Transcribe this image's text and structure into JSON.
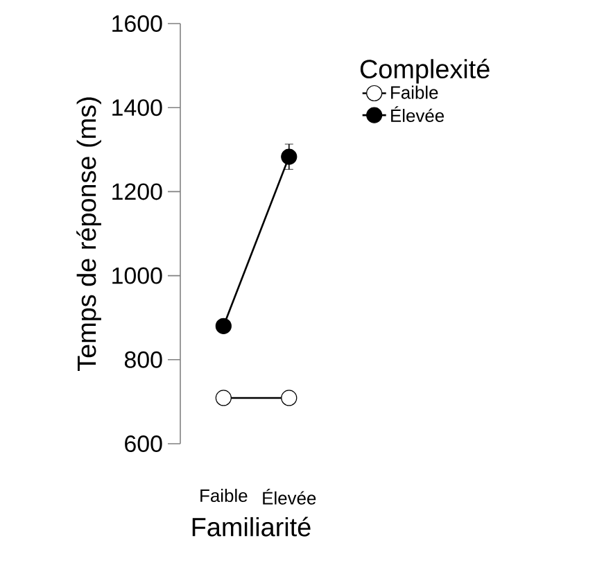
{
  "chart_data": {
    "type": "line",
    "xlabel": "Familiarité",
    "ylabel": "Temps de réponse (ms)",
    "legend_title": "Complexité",
    "categories": [
      "Faible",
      "Élevée"
    ],
    "series": [
      {
        "name": "Faible",
        "color": "#ffffff",
        "values": [
          709,
          709
        ]
      },
      {
        "name": "Élevée",
        "color": "#000000",
        "values": [
          880,
          1283
        ],
        "errors": [
          null,
          30
        ]
      }
    ],
    "ylim": [
      600,
      1600
    ],
    "yticks": [
      600,
      800,
      1000,
      1200,
      1400,
      1600
    ],
    "grid": false,
    "legend": "right",
    "marker": "circle",
    "line_style": "solid"
  }
}
